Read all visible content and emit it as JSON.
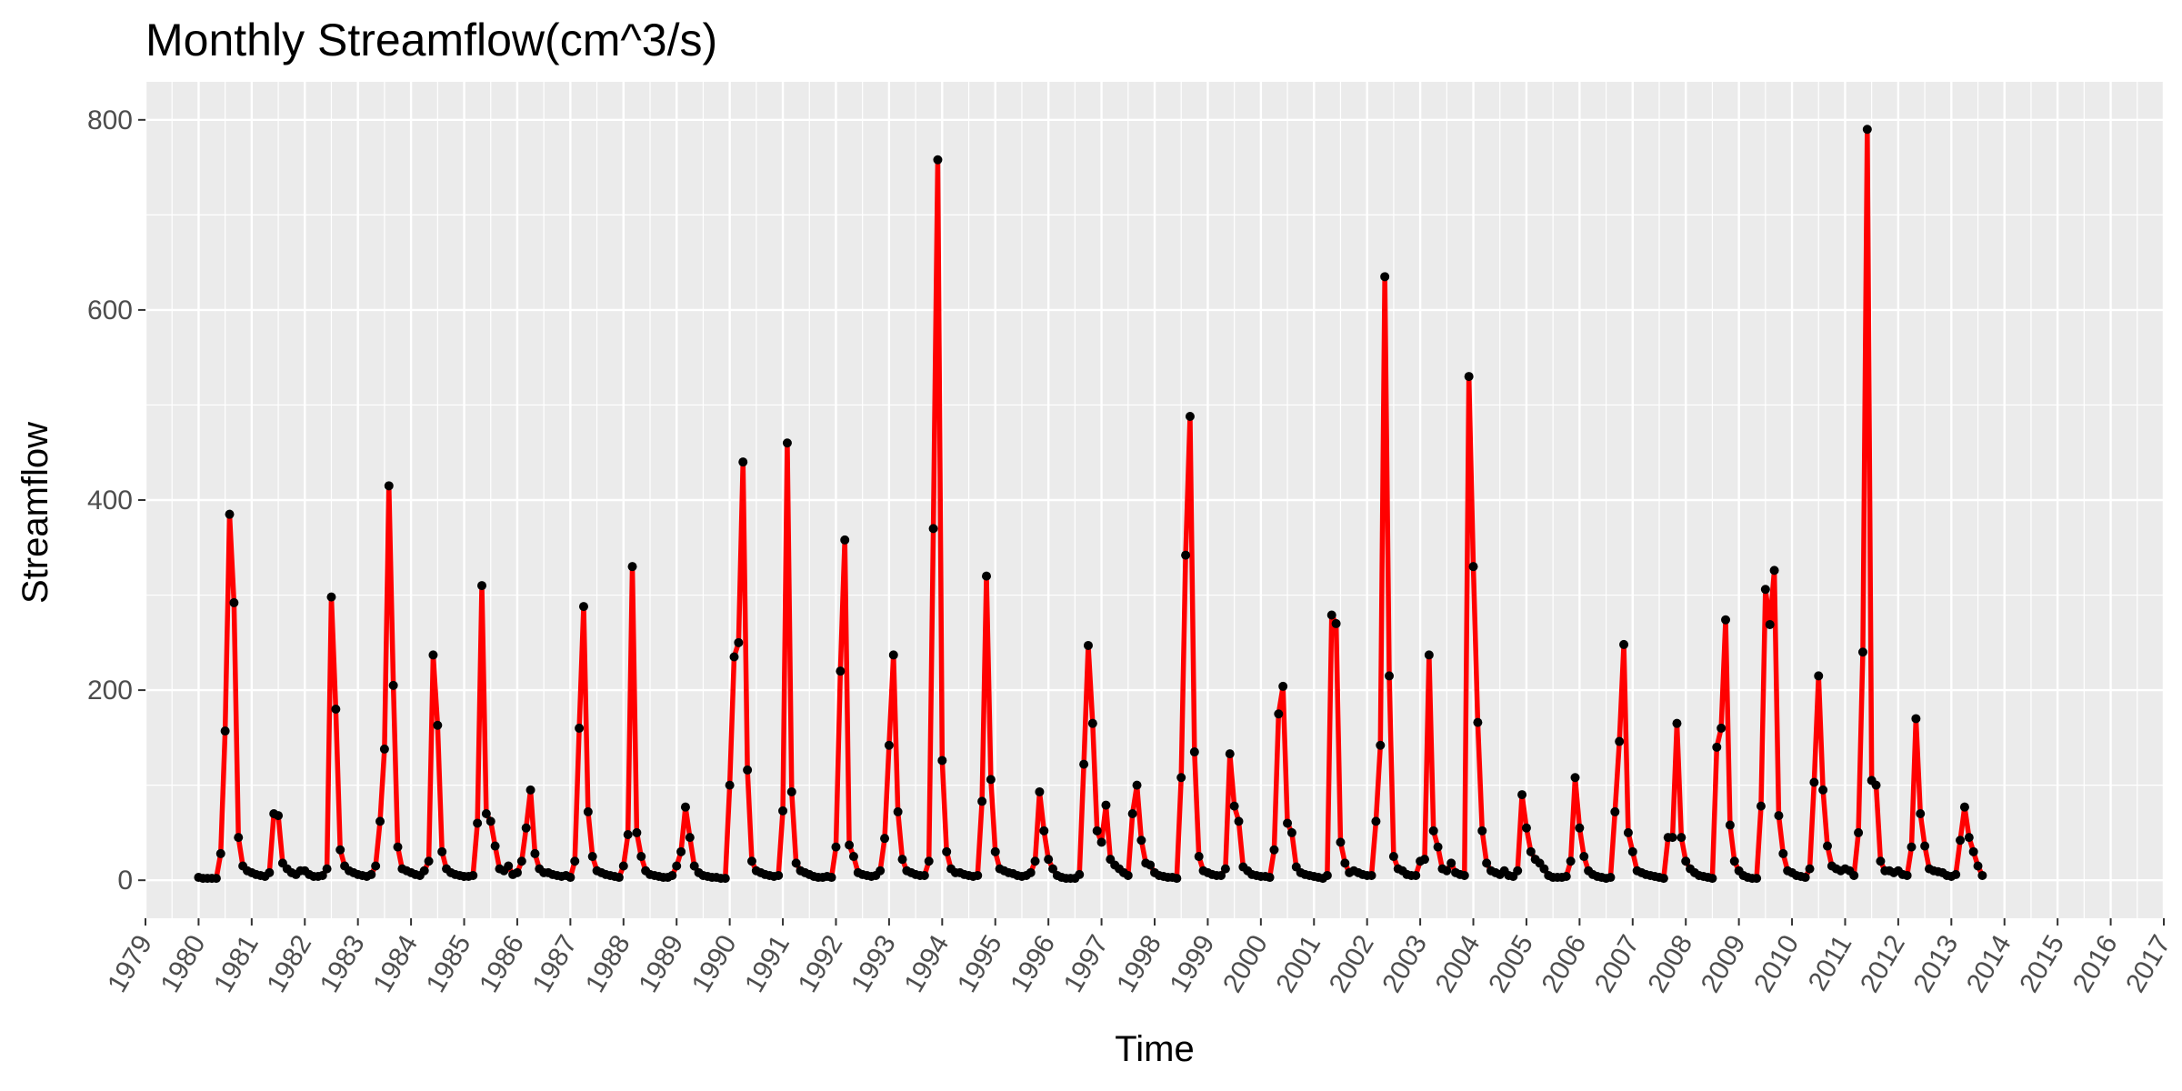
{
  "chart_data": {
    "type": "line",
    "title": "Monthly Streamflow(cm^3/s)",
    "xlabel": "Time",
    "ylabel": "Streamflow",
    "xlim": [
      1979.0,
      2017.0
    ],
    "ylim": [
      -40,
      840
    ],
    "y_ticks": [
      0,
      200,
      400,
      600,
      800
    ],
    "x_ticks": [
      "1979",
      "1980",
      "1981",
      "1982",
      "1983",
      "1984",
      "1985",
      "1986",
      "1987",
      "1988",
      "1989",
      "1990",
      "1991",
      "1992",
      "1993",
      "1994",
      "1995",
      "1996",
      "1997",
      "1998",
      "1999",
      "2000",
      "2001",
      "2002",
      "2003",
      "2004",
      "2005",
      "2006",
      "2007",
      "2008",
      "2009",
      "2010",
      "2011",
      "2012",
      "2013",
      "2014",
      "2015",
      "2016",
      "2017"
    ],
    "x_tick_rotation": -60,
    "grid": true,
    "line_color": "#ff0000",
    "point_color": "#000000",
    "panel_background": "#ebebeb",
    "start": "1980-01",
    "series": [
      {
        "values": [
          3,
          2,
          2,
          2,
          2,
          28,
          157,
          385,
          292,
          45,
          15,
          10,
          8,
          6,
          5,
          4,
          8,
          70,
          68,
          18,
          12,
          8,
          6,
          10,
          10,
          6,
          4,
          4,
          5,
          12,
          298,
          180,
          32,
          15,
          10,
          8,
          6,
          5,
          4,
          6,
          15,
          62,
          138,
          415,
          205,
          35,
          12,
          10,
          8,
          6,
          5,
          10,
          20,
          237,
          163,
          30,
          12,
          8,
          6,
          5,
          4,
          4,
          5,
          60,
          310,
          70,
          62,
          36,
          12,
          10,
          15,
          6,
          8,
          20,
          55,
          95,
          28,
          12,
          8,
          8,
          6,
          5,
          4,
          5,
          3,
          20,
          160,
          288,
          72,
          25,
          10,
          8,
          6,
          5,
          4,
          3,
          15,
          48,
          330,
          50,
          25,
          10,
          6,
          5,
          4,
          3,
          3,
          5,
          15,
          30,
          77,
          45,
          15,
          8,
          5,
          4,
          3,
          3,
          2,
          2,
          100,
          235,
          250,
          440,
          116,
          20,
          10,
          8,
          6,
          5,
          4,
          5,
          73,
          460,
          93,
          18,
          10,
          8,
          6,
          4,
          3,
          3,
          4,
          3,
          35,
          220,
          358,
          37,
          25,
          8,
          6,
          5,
          4,
          5,
          10,
          44,
          142,
          237,
          72,
          22,
          10,
          8,
          6,
          5,
          5,
          20,
          370,
          758,
          126,
          30,
          12,
          8,
          8,
          6,
          5,
          4,
          5,
          83,
          320,
          106,
          30,
          12,
          10,
          8,
          7,
          5,
          4,
          5,
          8,
          20,
          93,
          52,
          22,
          12,
          5,
          3,
          2,
          2,
          2,
          6,
          122,
          247,
          165,
          52,
          40,
          79,
          22,
          16,
          12,
          8,
          5,
          70,
          100,
          42,
          18,
          16,
          8,
          5,
          4,
          3,
          3,
          2,
          108,
          342,
          488,
          135,
          25,
          10,
          8,
          6,
          5,
          5,
          12,
          133,
          78,
          62,
          14,
          10,
          6,
          5,
          4,
          4,
          3,
          32,
          175,
          204,
          60,
          50,
          14,
          8,
          6,
          5,
          4,
          3,
          2,
          5,
          279,
          270,
          40,
          18,
          8,
          10,
          8,
          6,
          5,
          5,
          62,
          142,
          635,
          215,
          25,
          12,
          10,
          6,
          5,
          5,
          20,
          22,
          237,
          52,
          35,
          12,
          10,
          18,
          8,
          6,
          5,
          530,
          330,
          166,
          52,
          18,
          10,
          8,
          6,
          10,
          5,
          4,
          10,
          90,
          55,
          30,
          22,
          18,
          12,
          5,
          3,
          3,
          3,
          4,
          20,
          108,
          55,
          25,
          10,
          6,
          4,
          3,
          2,
          3,
          72,
          146,
          248,
          50,
          30,
          10,
          8,
          6,
          5,
          4,
          3,
          2,
          45,
          45,
          165,
          45,
          20,
          12,
          8,
          5,
          4,
          3,
          2,
          140,
          160,
          274,
          58,
          20,
          10,
          5,
          3,
          2,
          2,
          78,
          306,
          269,
          326,
          68,
          28,
          10,
          8,
          5,
          4,
          3,
          12,
          103,
          215,
          95,
          36,
          15,
          12,
          10,
          12,
          10,
          5,
          50,
          240,
          790,
          105,
          100,
          20,
          10,
          10,
          8,
          10,
          6,
          5,
          35,
          170,
          70,
          36,
          12,
          10,
          9,
          8,
          5,
          4,
          6,
          42,
          77,
          45,
          30,
          15,
          5
        ]
      }
    ]
  }
}
